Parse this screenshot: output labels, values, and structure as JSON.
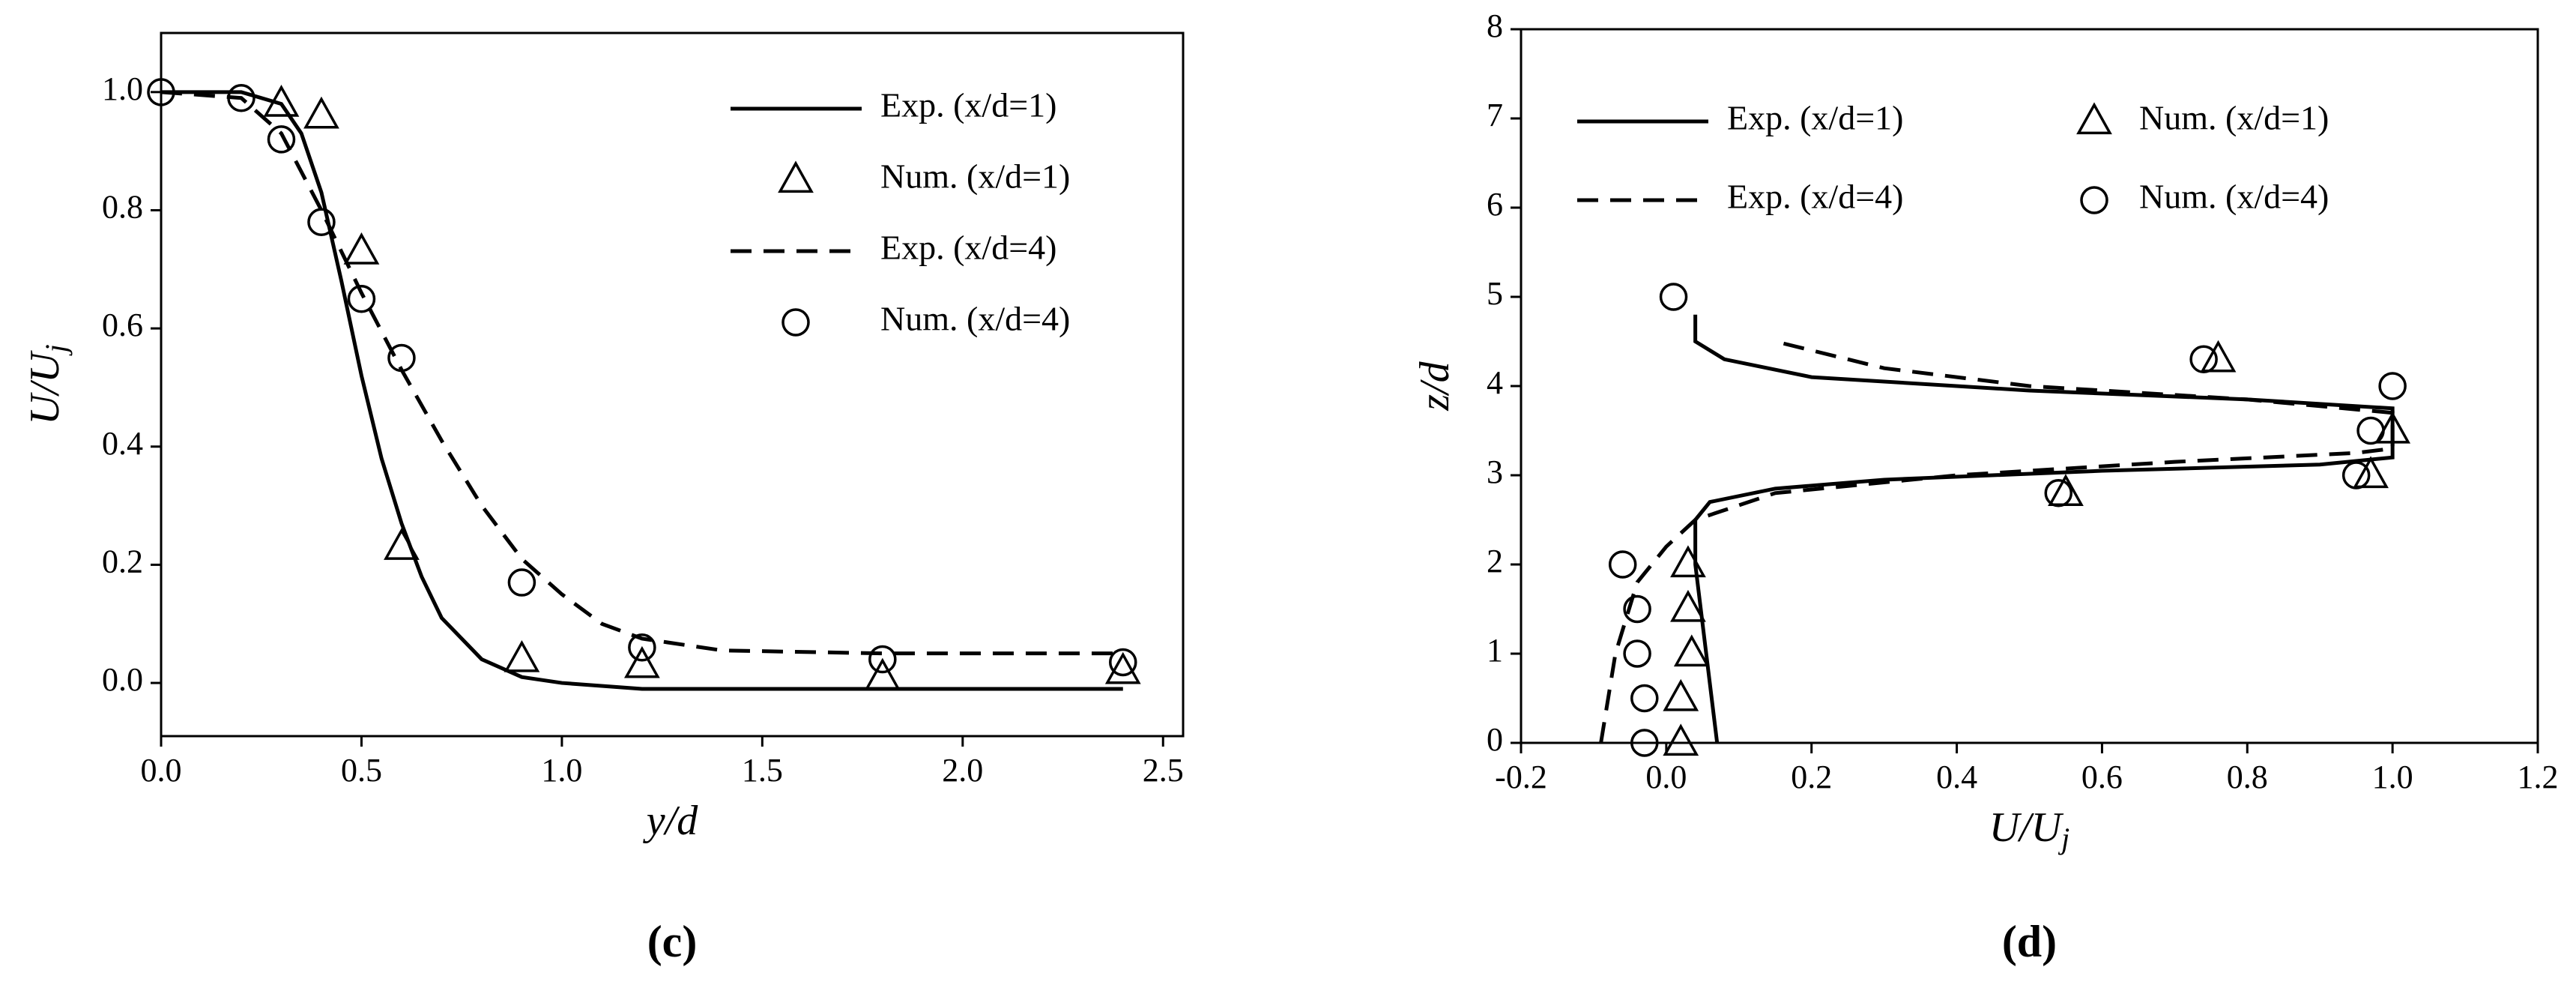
{
  "chart_data": [
    {
      "type": "line",
      "panel": "(c)",
      "xlabel": "y/d",
      "ylabel": "U/U",
      "ylabel_sub": "j",
      "xlim": [
        0,
        2.55
      ],
      "ylim": [
        -0.09,
        1.1
      ],
      "xticks": [
        {
          "value": 0,
          "label": "0.0"
        },
        {
          "value": 0.5,
          "label": "0.5"
        },
        {
          "value": 1,
          "label": "1.0"
        },
        {
          "value": 1.5,
          "label": "1.5"
        },
        {
          "value": 2,
          "label": "2.0"
        },
        {
          "value": 2.5,
          "label": "2.5"
        }
      ],
      "yticks": [
        {
          "value": 0,
          "label": "0.0"
        },
        {
          "value": 0.2,
          "label": "0.2"
        },
        {
          "value": 0.4,
          "label": "0.4"
        },
        {
          "value": 0.6,
          "label": "0.6"
        },
        {
          "value": 0.8,
          "label": "0.8"
        },
        {
          "value": 1,
          "label": "1.0"
        }
      ],
      "legend": "upper right",
      "series": [
        {
          "name": "Exp. (x/d=1)",
          "color": "#000000",
          "style": "solid",
          "x": [
            0,
            0.1,
            0.2,
            0.3,
            0.35,
            0.4,
            0.45,
            0.5,
            0.55,
            0.6,
            0.65,
            0.7,
            0.8,
            0.9,
            1.0,
            1.2,
            1.5,
            2.0,
            2.4
          ],
          "values": [
            1.0,
            1.0,
            1.0,
            0.98,
            0.93,
            0.83,
            0.68,
            0.52,
            0.38,
            0.27,
            0.18,
            0.11,
            0.04,
            0.01,
            0.0,
            -0.01,
            -0.01,
            -0.01,
            -0.01
          ]
        },
        {
          "name": "Num. (x/d=1)",
          "color": "#000000",
          "style": "triangle",
          "x": [
            0.3,
            0.4,
            0.5,
            0.6,
            0.9,
            1.2,
            1.8,
            2.4
          ],
          "values": [
            0.98,
            0.96,
            0.73,
            0.23,
            0.04,
            0.03,
            0.01,
            0.02
          ]
        },
        {
          "name": "Exp. (x/d=4)",
          "color": "#000000",
          "style": "dashed",
          "x": [
            0,
            0.2,
            0.3,
            0.4,
            0.5,
            0.6,
            0.7,
            0.8,
            0.9,
            1.0,
            1.1,
            1.2,
            1.4,
            1.8,
            2.4
          ],
          "values": [
            1.0,
            0.99,
            0.93,
            0.8,
            0.66,
            0.53,
            0.41,
            0.3,
            0.21,
            0.15,
            0.1,
            0.075,
            0.055,
            0.05,
            0.05
          ]
        },
        {
          "name": "Num. (x/d=4)",
          "color": "#000000",
          "style": "circle",
          "x": [
            0,
            0.2,
            0.3,
            0.4,
            0.5,
            0.6,
            0.9,
            1.2,
            1.8,
            2.4
          ],
          "values": [
            1.0,
            0.99,
            0.92,
            0.78,
            0.65,
            0.55,
            0.17,
            0.06,
            0.04,
            0.035
          ]
        }
      ]
    },
    {
      "type": "line",
      "panel": "(d)",
      "xlabel": "U/U",
      "xlabel_sub": "j",
      "ylabel": "z/d",
      "xlim": [
        -0.2,
        1.2
      ],
      "ylim": [
        0,
        8
      ],
      "xticks": [
        -0.2,
        {
          "value": 0,
          "label": "0.0"
        },
        0.2,
        0.4,
        0.6,
        0.8,
        {
          "value": 1,
          "label": "1.0"
        },
        1.2
      ],
      "yticks": [
        0,
        1,
        2,
        3,
        4,
        5,
        6,
        7,
        8
      ],
      "legend": "upper left",
      "series": [
        {
          "name": "Exp. (x/d=1)",
          "color": "#000000",
          "style": "solid",
          "x": [
            0.07,
            0.055,
            0.04,
            0.04,
            0.06,
            0.15,
            0.3,
            0.6,
            0.9,
            1.0,
            1.0,
            0.8,
            0.5,
            0.2,
            0.08,
            0.04,
            0.04
          ],
          "values": [
            0,
            1,
            2,
            2.5,
            2.7,
            2.85,
            2.95,
            3.05,
            3.12,
            3.2,
            3.75,
            3.85,
            3.95,
            4.1,
            4.3,
            4.5,
            4.8
          ]
        },
        {
          "name": "Exp. (x/d=4)",
          "color": "#000000",
          "style": "dashed",
          "x": [
            -0.09,
            -0.07,
            -0.04,
            0.0,
            0.04,
            0.15,
            0.4,
            0.7,
            0.95,
            1.0,
            1.0,
            0.8,
            0.5,
            0.3,
            0.15
          ],
          "values": [
            0,
            1,
            1.8,
            2.2,
            2.5,
            2.8,
            3.0,
            3.15,
            3.25,
            3.3,
            3.7,
            3.85,
            4.0,
            4.2,
            4.5
          ]
        },
        {
          "name": "Num. (x/d=1)",
          "color": "#000000",
          "style": "triangle",
          "x": [
            0.02,
            0.02,
            0.035,
            0.03,
            0.03,
            0.55,
            0.76,
            0.97,
            1.0
          ],
          "values": [
            0,
            0.5,
            1,
            1.5,
            2,
            2.8,
            4.3,
            3.0,
            3.5
          ]
        },
        {
          "name": "Num. (x/d=4)",
          "color": "#000000",
          "style": "circle",
          "x": [
            -0.03,
            -0.03,
            -0.04,
            -0.04,
            -0.06,
            0.54,
            0.74,
            0.95,
            0.97,
            1.0,
            0.01
          ],
          "values": [
            0,
            0.5,
            1,
            1.5,
            2,
            2.8,
            4.3,
            3.0,
            3.5,
            4.0,
            5.0
          ]
        }
      ]
    }
  ]
}
